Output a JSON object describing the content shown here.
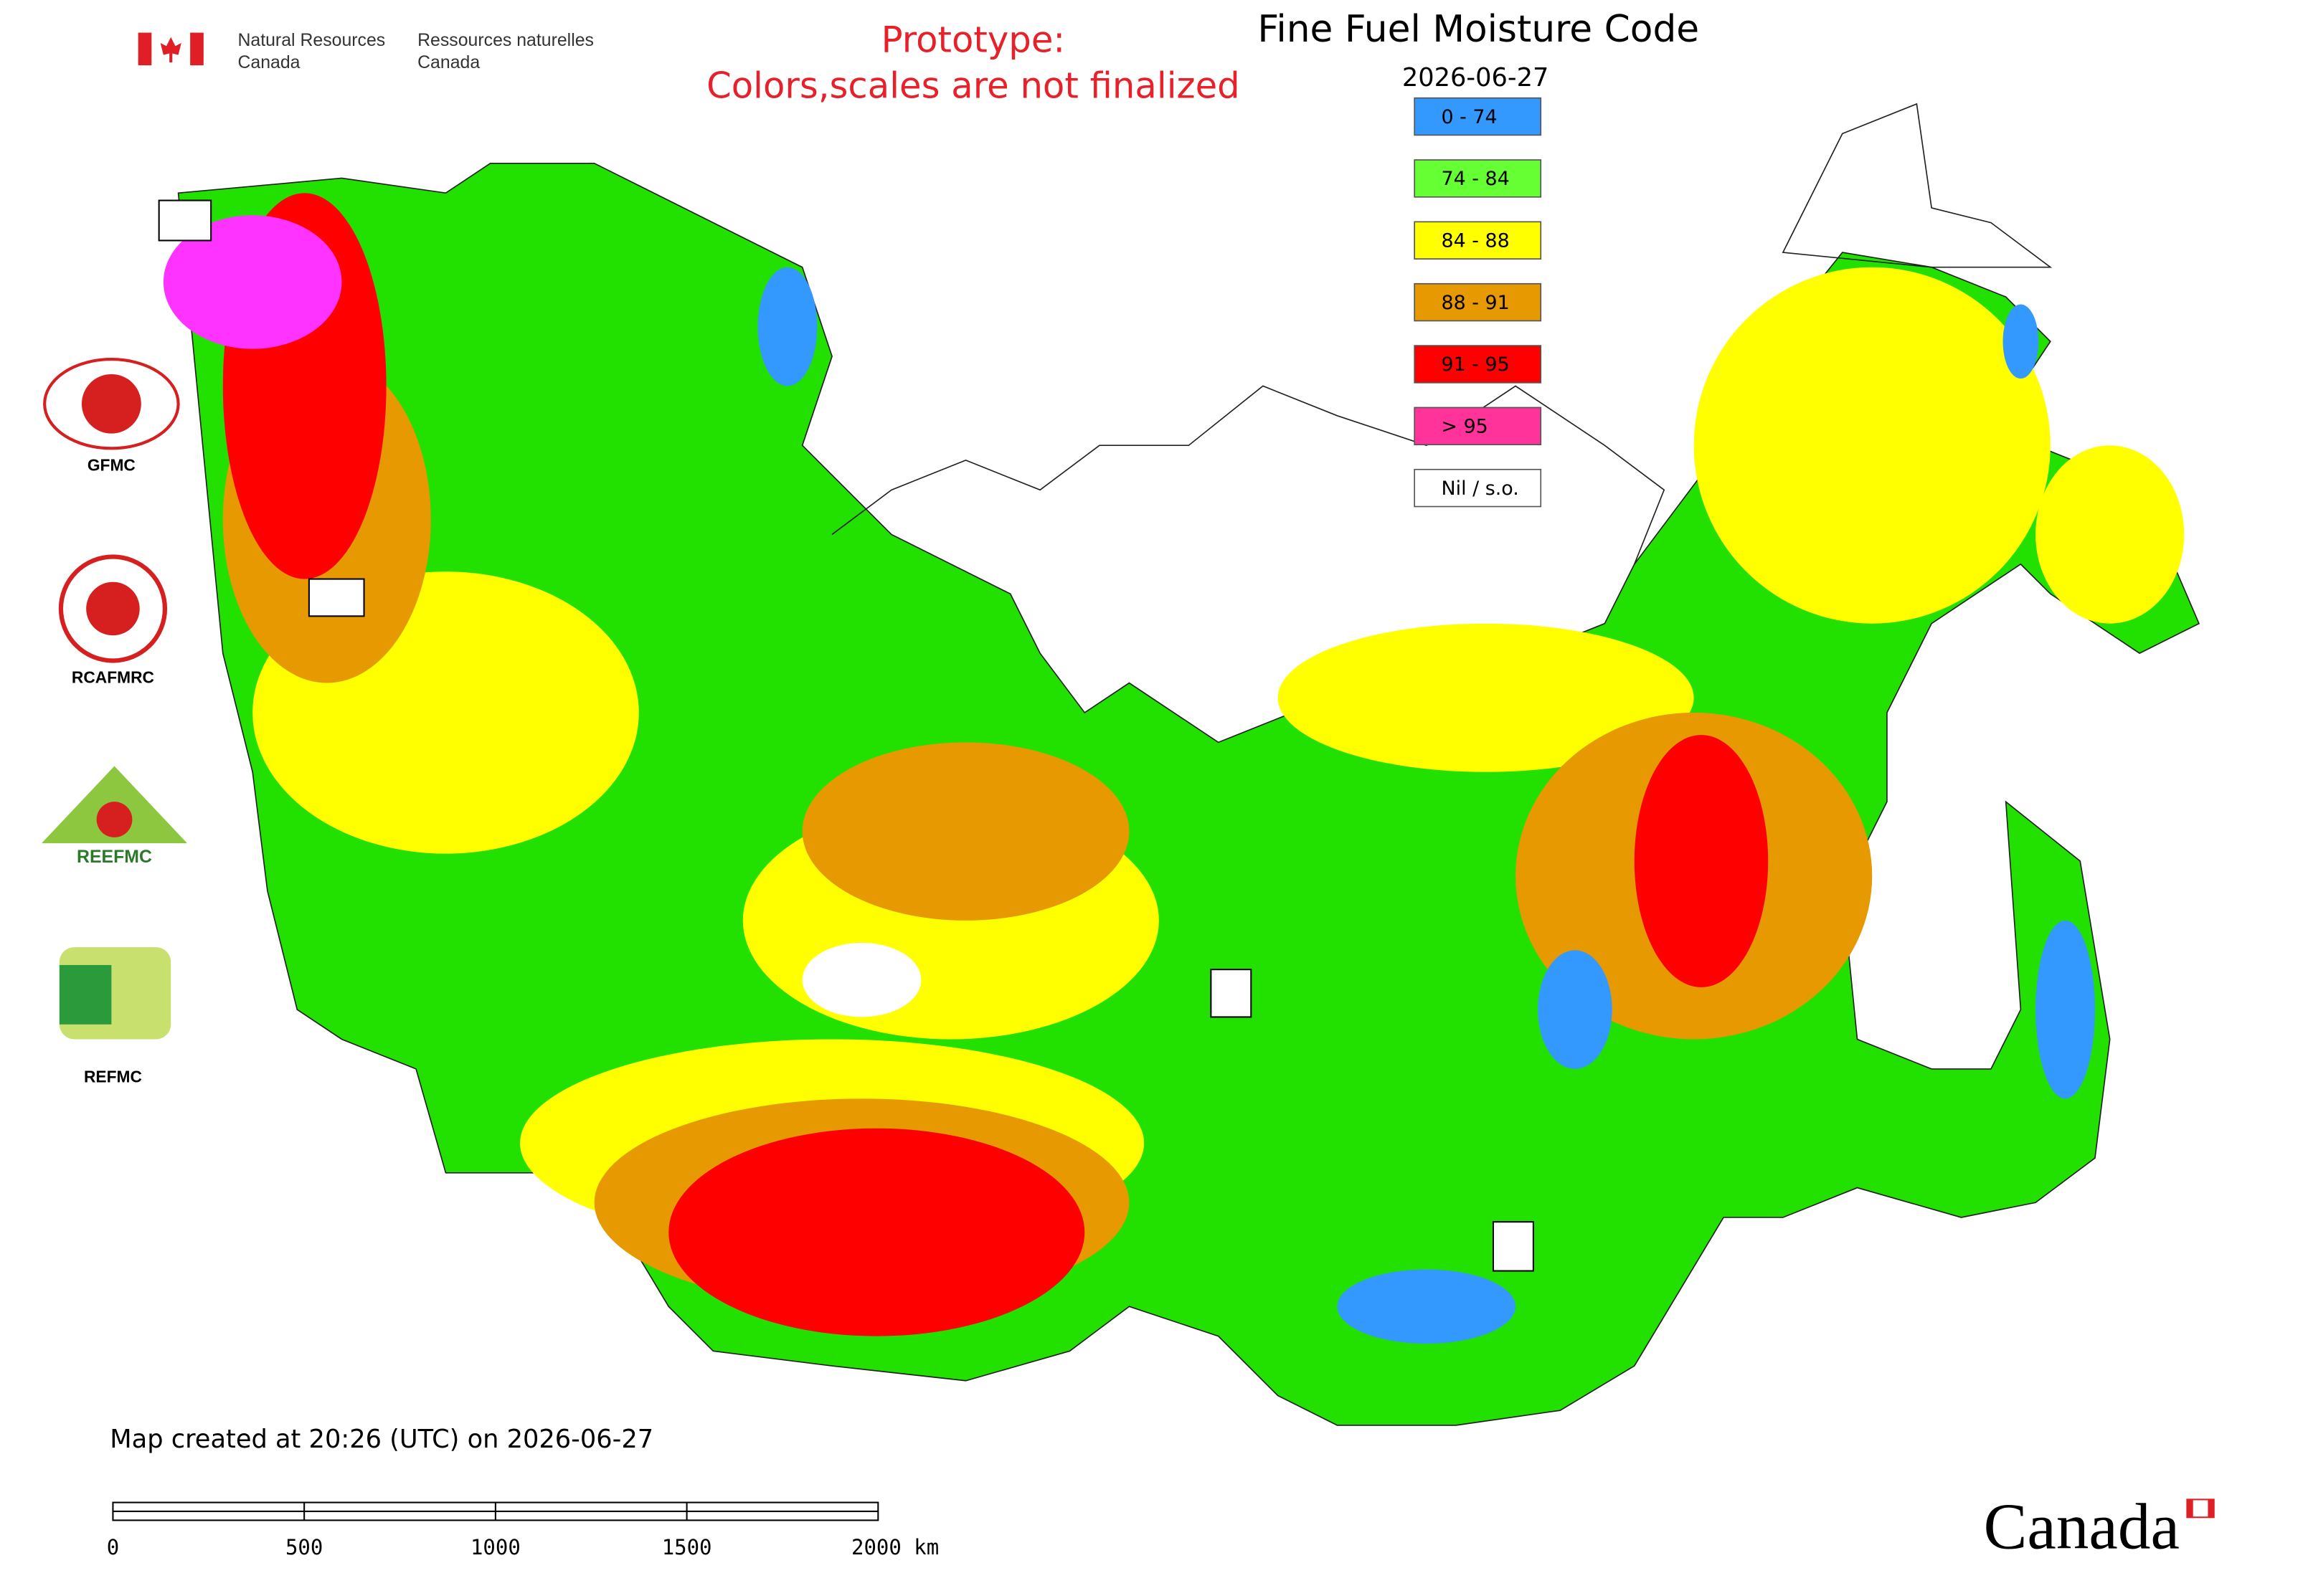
{
  "header": {
    "agency_en": [
      "Natural Resources",
      "Canada"
    ],
    "agency_fr": [
      "Ressources naturelles",
      "Canada"
    ],
    "notice": [
      "Prototype:",
      "Colors,scales are not finalized"
    ]
  },
  "map": {
    "title": "Fine Fuel Moisture Code",
    "date": "2026-06-27",
    "legend": [
      {
        "label": "0 - 74",
        "color": "#3399ff"
      },
      {
        "label": "74 - 84",
        "color": "#66ff33"
      },
      {
        "label": "84 - 88",
        "color": "#ffff00"
      },
      {
        "label": "88 - 91",
        "color": "#e69900"
      },
      {
        "label": "91 - 95",
        "color": "#ff0000"
      },
      {
        "label": "> 95",
        "color": "#ff3399"
      },
      {
        "label": "Nil / s.o.",
        "color": "#ffffff"
      }
    ],
    "created": "Map created at 20:26 (UTC) on 2026-06-27",
    "scale_bar": [
      "0",
      "500",
      "1000",
      "1500",
      "2000 km"
    ]
  },
  "logos": [
    "GFMC",
    "RCAFMRC",
    "REEFMC",
    "REFMC"
  ],
  "wordmark": "Canada"
}
